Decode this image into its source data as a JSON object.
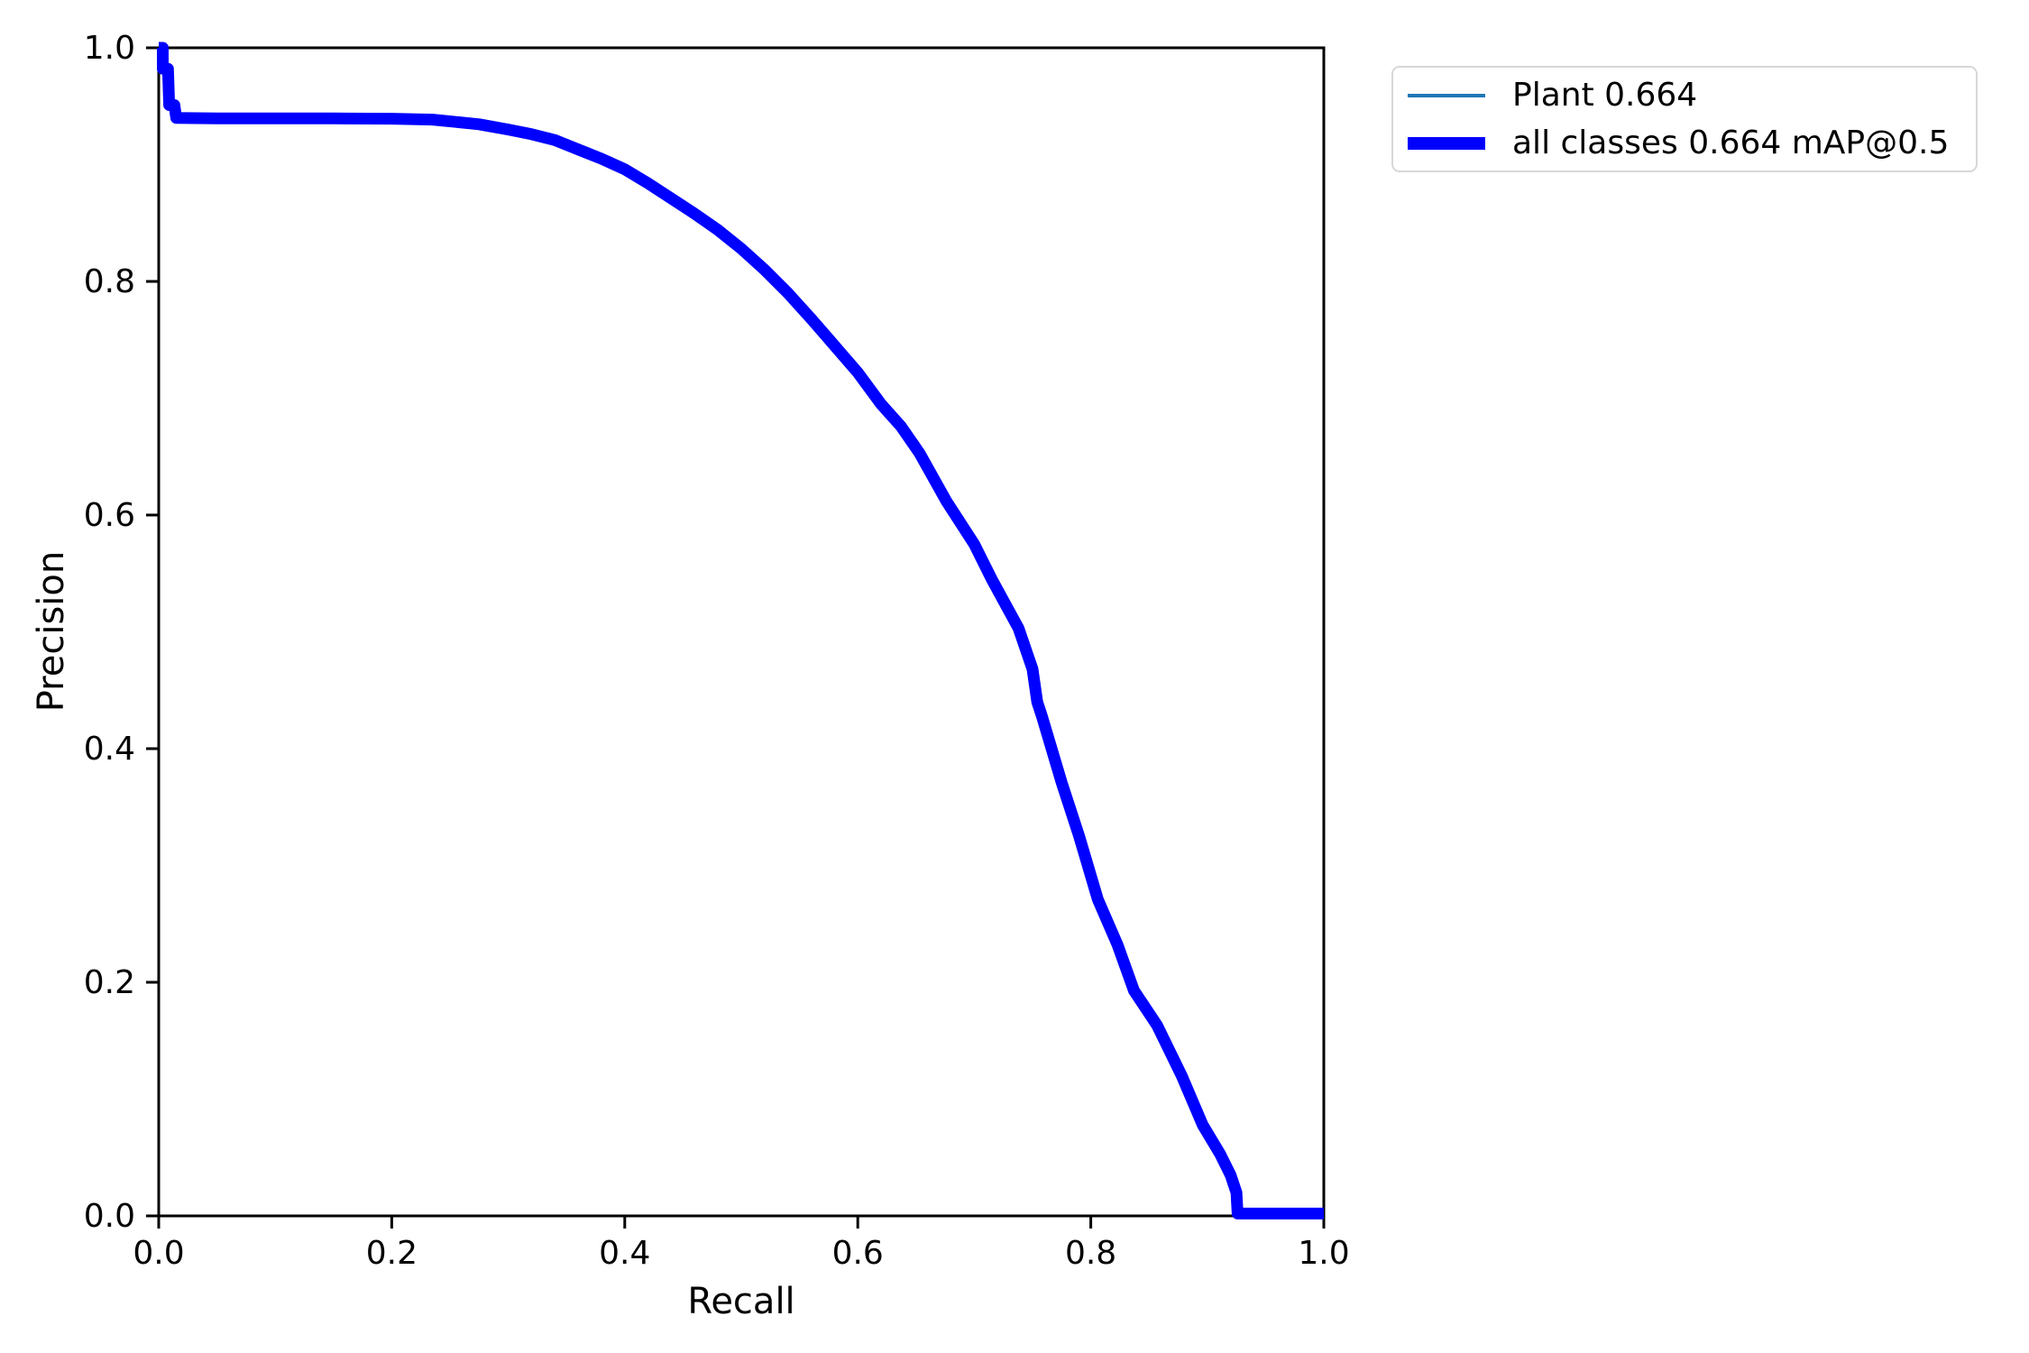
{
  "figure": {
    "background": "#ffffff"
  },
  "chart_data": {
    "type": "line",
    "title": "",
    "xlabel": "Recall",
    "ylabel": "Precision",
    "xlim": [
      0.0,
      1.0
    ],
    "ylim": [
      0.0,
      1.0
    ],
    "x_ticks": [
      "0.0",
      "0.2",
      "0.4",
      "0.6",
      "0.8",
      "1.0"
    ],
    "y_ticks": [
      "0.0",
      "0.2",
      "0.4",
      "0.6",
      "0.8",
      "1.0"
    ],
    "grid": false,
    "legend_position": "outside-upper-right",
    "pr_curve": [
      [
        0.0,
        1.0
      ],
      [
        0.0035,
        1.0
      ],
      [
        0.0035,
        0.982
      ],
      [
        0.008,
        0.982
      ],
      [
        0.009,
        0.951
      ],
      [
        0.0135,
        0.951
      ],
      [
        0.015,
        0.94
      ],
      [
        0.05,
        0.9395
      ],
      [
        0.1,
        0.9395
      ],
      [
        0.15,
        0.9395
      ],
      [
        0.2,
        0.9393
      ],
      [
        0.235,
        0.9385
      ],
      [
        0.255,
        0.9365
      ],
      [
        0.275,
        0.9345
      ],
      [
        0.3,
        0.93
      ],
      [
        0.32,
        0.926
      ],
      [
        0.34,
        0.921
      ],
      [
        0.36,
        0.913
      ],
      [
        0.38,
        0.905
      ],
      [
        0.4,
        0.896
      ],
      [
        0.42,
        0.884
      ],
      [
        0.44,
        0.871
      ],
      [
        0.46,
        0.858
      ],
      [
        0.48,
        0.844
      ],
      [
        0.5,
        0.828
      ],
      [
        0.52,
        0.81
      ],
      [
        0.54,
        0.79
      ],
      [
        0.56,
        0.768
      ],
      [
        0.58,
        0.745
      ],
      [
        0.6,
        0.722
      ],
      [
        0.62,
        0.695
      ],
      [
        0.637,
        0.676
      ],
      [
        0.653,
        0.653
      ],
      [
        0.676,
        0.612
      ],
      [
        0.7,
        0.575
      ],
      [
        0.715,
        0.545
      ],
      [
        0.738,
        0.503
      ],
      [
        0.75,
        0.468
      ],
      [
        0.754,
        0.44
      ],
      [
        0.758,
        0.428
      ],
      [
        0.775,
        0.371
      ],
      [
        0.79,
        0.325
      ],
      [
        0.806,
        0.271
      ],
      [
        0.823,
        0.232
      ],
      [
        0.837,
        0.193
      ],
      [
        0.857,
        0.163
      ],
      [
        0.878,
        0.12
      ],
      [
        0.896,
        0.078
      ],
      [
        0.911,
        0.053
      ],
      [
        0.92,
        0.035
      ],
      [
        0.925,
        0.02
      ],
      [
        0.926,
        0.002
      ],
      [
        1.0,
        0.002
      ]
    ],
    "series": [
      {
        "name": "Plant 0.664",
        "color": "#1f77b4",
        "line_width": 4,
        "points_ref": "pr_curve"
      },
      {
        "name": "all classes 0.664 mAP@0.5",
        "color": "#0000ff",
        "line_width": 13,
        "points_ref": "pr_curve"
      }
    ]
  }
}
